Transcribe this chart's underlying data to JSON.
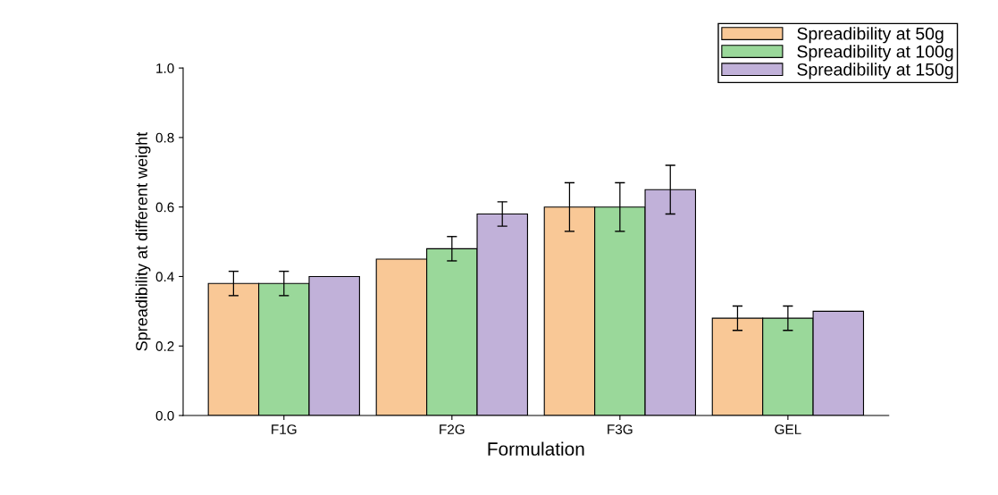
{
  "chart_data": {
    "type": "bar",
    "xlabel": "Formulation",
    "ylabel": "Spreadibility at different weight",
    "categories": [
      "F1G",
      "F2G",
      "F3G",
      "GEL"
    ],
    "series": [
      {
        "name": "Spreadibility at 50g",
        "color": "#f9c896",
        "values": [
          0.38,
          0.45,
          0.6,
          0.28
        ],
        "errors": [
          0.035,
          null,
          0.07,
          0.035
        ]
      },
      {
        "name": "Spreadibility at 100g",
        "color": "#9ad89a",
        "values": [
          0.38,
          0.48,
          0.6,
          0.28
        ],
        "errors": [
          0.035,
          0.035,
          0.07,
          0.035
        ]
      },
      {
        "name": "Spreadibility at 150g",
        "color": "#c1b1d9",
        "values": [
          0.4,
          0.58,
          0.65,
          0.3
        ],
        "errors": [
          null,
          0.035,
          0.07,
          null
        ]
      }
    ],
    "ylim": [
      0.0,
      1.0
    ],
    "yticks": [
      {
        "value": 0,
        "label": "0.0"
      },
      0.2,
      0.4,
      0.6,
      0.8,
      {
        "value": 1,
        "label": "1.0"
      }
    ],
    "grid": false,
    "legend": "top right"
  }
}
